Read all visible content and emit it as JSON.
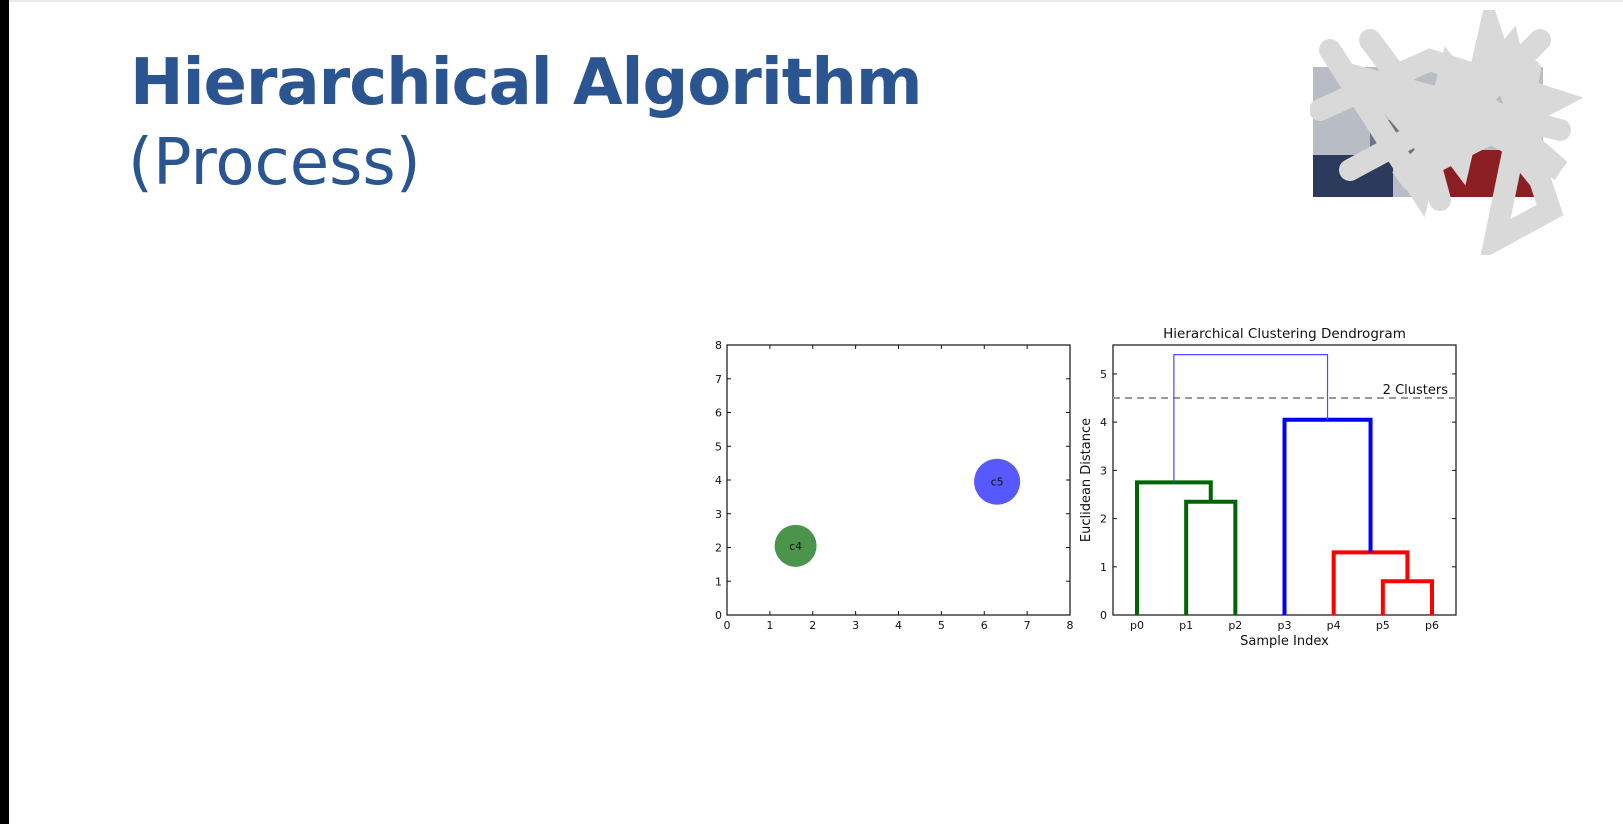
{
  "slide": {
    "title": "Hierarchical Algorithm",
    "subtitle": "(Process)"
  },
  "chart_data": [
    {
      "type": "scatter",
      "title": "",
      "xlabel": "",
      "ylabel": "",
      "xlim": [
        0,
        8
      ],
      "ylim": [
        0,
        8
      ],
      "xticks": [
        0,
        1,
        2,
        3,
        4,
        5,
        6,
        7,
        8
      ],
      "yticks": [
        0,
        1,
        2,
        3,
        4,
        5,
        6,
        7,
        8
      ],
      "grid": false,
      "points": [
        {
          "label": "c4",
          "x": 1.6,
          "y": 2.05,
          "color": "#3d8b3d"
        },
        {
          "label": "c5",
          "x": 6.3,
          "y": 3.95,
          "color": "#4a4aff"
        }
      ]
    },
    {
      "type": "dendrogram",
      "title": "Hierarchical Clustering Dendrogram",
      "xlabel": "Sample Index",
      "ylabel": "Euclidean Distance",
      "ylim": [
        0,
        5.6
      ],
      "yticks": [
        0,
        1,
        2,
        3,
        4,
        5
      ],
      "leaves": [
        "p0",
        "p1",
        "p2",
        "p3",
        "p4",
        "p5",
        "p6"
      ],
      "threshold": {
        "value": 4.5,
        "label": "2 Clusters"
      },
      "colors": {
        "green": "#006400",
        "blue": "#0000ff",
        "red": "#ff0000",
        "link": "#4a4aff"
      },
      "links": [
        {
          "left": 5,
          "right": 6,
          "height": 0.7,
          "leftBase": 0,
          "rightBase": 0,
          "color": "red",
          "width": 4
        },
        {
          "left": 4,
          "right": 5.5,
          "height": 1.3,
          "leftBase": 0,
          "rightBase": 0.7,
          "color": "red",
          "width": 4
        },
        {
          "left": 3,
          "right": 4.75,
          "height": 4.05,
          "leftBase": 0,
          "rightBase": 1.3,
          "color": "blue",
          "width": 4
        },
        {
          "left": 1,
          "right": 2,
          "height": 2.35,
          "leftBase": 0,
          "rightBase": 0,
          "color": "green",
          "width": 4
        },
        {
          "left": 0,
          "right": 1.5,
          "height": 2.75,
          "leftBase": 0,
          "rightBase": 2.35,
          "color": "green",
          "width": 4
        },
        {
          "left": 0.75,
          "right": 3.875,
          "height": 5.4,
          "leftBase": 2.75,
          "rightBase": 4.05,
          "color": "link",
          "width": 1.2
        }
      ]
    }
  ]
}
